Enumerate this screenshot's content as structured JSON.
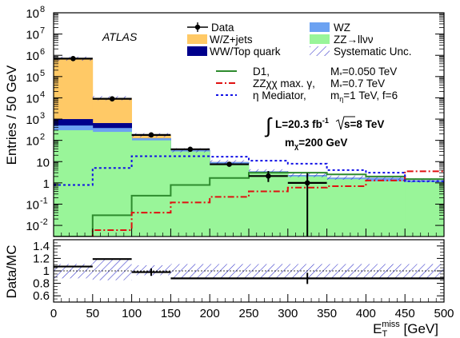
{
  "chart_data": [
    {
      "type": "bar",
      "subtype": "stacked-histogram-log",
      "experiment_label": "ATLAS",
      "ylabel": "Entries / 50 GeV",
      "yscale": "log",
      "ylim": [
        0.003,
        100000000
      ],
      "yticks": [
        {
          "v": 0.01,
          "b": "10",
          "e": "-2"
        },
        {
          "v": 0.1,
          "b": "10",
          "e": "-1"
        },
        {
          "v": 1,
          "b": "1",
          "e": ""
        },
        {
          "v": 10,
          "b": "10",
          "e": ""
        },
        {
          "v": 100,
          "b": "10",
          "e": "2"
        },
        {
          "v": 1000,
          "b": "10",
          "e": "3"
        },
        {
          "v": 10000,
          "b": "10",
          "e": "4"
        },
        {
          "v": 100000,
          "b": "10",
          "e": "5"
        },
        {
          "v": 1000000,
          "b": "10",
          "e": "6"
        },
        {
          "v": 10000000,
          "b": "10",
          "e": "7"
        },
        {
          "v": 100000000,
          "b": "10",
          "e": "8"
        }
      ],
      "xlim": [
        0,
        500
      ],
      "bin_edges": [
        0,
        50,
        100,
        150,
        200,
        250,
        300,
        350,
        400,
        450,
        500
      ],
      "stacked_series": [
        {
          "name": "ZZ→llνν",
          "color": "#99f599",
          "values": [
            300,
            250,
            100,
            30,
            8,
            3,
            2,
            1.5,
            1.2,
            1.1
          ]
        },
        {
          "name": "WZ",
          "color": "#6ca2f2",
          "values": [
            200,
            130,
            25,
            4,
            1.5,
            0.5,
            0.3,
            0.25,
            0.5,
            0.2
          ]
        },
        {
          "name": "WW/Top quark",
          "color": "#00008c",
          "values": [
            500,
            270,
            0,
            0,
            0,
            0,
            0,
            0,
            0,
            0
          ]
        },
        {
          "name": "W/Z+jets",
          "color": "#ffc966",
          "values": [
            700000,
            9000,
            50,
            0,
            0,
            0,
            0,
            0,
            0,
            0
          ]
        }
      ],
      "data_points": [
        {
          "x": 25,
          "y": 700000
        },
        {
          "x": 75,
          "y": 9000
        },
        {
          "x": 125,
          "y": 180
        },
        {
          "x": 175,
          "y": 38
        },
        {
          "x": 225,
          "y": 7.5
        },
        {
          "x": 275,
          "y": 2.1,
          "err_lo": 1.0,
          "err_hi": 1.5
        },
        {
          "x": 325,
          "y": 1.0,
          "err_lo": 0.997,
          "err_hi": 1.9
        }
      ],
      "data_bins_shown": [
        {
          "lo": 0,
          "hi": 50
        },
        {
          "lo": 50,
          "hi": 100
        },
        {
          "lo": 100,
          "hi": 150
        },
        {
          "lo": 150,
          "hi": 200
        },
        {
          "lo": 200,
          "hi": 250
        },
        {
          "lo": 250,
          "hi": 300
        },
        {
          "lo": 300,
          "hi": 350
        }
      ],
      "signal_series": [
        {
          "name": "D1",
          "color": "#2e8b2e",
          "dash": "",
          "values": [
            0.003,
            0.03,
            0.25,
            0.8,
            1.7,
            3.0,
            3.0,
            2.5,
            2.0,
            1.5
          ]
        },
        {
          "name": "ZZχχ max. γ",
          "color": "#e01010",
          "dash": "8,3,2,3",
          "values": [
            0.0005,
            0.006,
            0.04,
            0.12,
            0.22,
            0.4,
            0.6,
            0.7,
            1.3,
            3.5
          ]
        },
        {
          "name": "η Mediator",
          "color": "#1010e6",
          "dash": "3,3",
          "values": [
            0.8,
            5,
            18,
            18,
            17,
            11,
            8,
            4,
            3,
            1.2
          ]
        }
      ],
      "legend": [
        {
          "label": "Data",
          "symbol": "marker"
        },
        {
          "label": "WZ",
          "symbol": "box",
          "color": "#6ca2f2"
        },
        {
          "label": "W/Z+jets",
          "symbol": "box",
          "color": "#ffc966"
        },
        {
          "label": "ZZ→llνν",
          "symbol": "box",
          "color": "#99f599"
        },
        {
          "label": "WW/Top quark",
          "symbol": "box",
          "color": "#00008c"
        },
        {
          "label": "Systematic Unc.",
          "symbol": "hatch",
          "color": "#3030c8"
        },
        {
          "label": "D1,",
          "symbol": "line",
          "color": "#2e8b2e",
          "param": "M",
          "param_sub": "*",
          "param_value": "=0.050 TeV"
        },
        {
          "label": "ZZχχ max. γ,",
          "symbol": "line",
          "color": "#e01010",
          "dash": "8,3,2,3",
          "param": "M",
          "param_sub": "*",
          "param_value": "=0.7 TeV"
        },
        {
          "label": "η Mediator,",
          "symbol": "line",
          "color": "#1010e6",
          "dash": "3,3",
          "param": "m",
          "param_sub": "η",
          "param_value": "=1 TeV, f=6"
        }
      ],
      "lumi_text": {
        "a": "L=20.3 fb",
        "a_sup": "-1",
        "b": "s=8 TeV"
      },
      "mass_text": {
        "a": "m",
        "a_sub": "χ",
        "b": "=200 GeV"
      }
    },
    {
      "type": "scatter",
      "subtype": "ratio-panel",
      "ylabel": "Data/MC",
      "ylim": [
        0.5,
        1.5
      ],
      "yticks": [
        "0.6",
        "0.8",
        "1",
        "1.2",
        "1.4"
      ],
      "xlim": [
        0,
        500
      ],
      "xticks": [
        "0",
        "50",
        "100",
        "150",
        "200",
        "250",
        "300",
        "350",
        "400",
        "450",
        "500"
      ],
      "xlabel": {
        "a": "E",
        "a_sub": "T",
        "a_sup": "miss",
        "b": " [GeV]"
      },
      "reference_line": 1.0,
      "syst_band": [
        {
          "lo": 0,
          "hi": 50,
          "min": 0.88,
          "max": 1.11
        },
        {
          "lo": 50,
          "hi": 100,
          "min": 0.85,
          "max": 1.2
        },
        {
          "lo": 100,
          "hi": 150,
          "min": 0.93,
          "max": 1.09
        },
        {
          "lo": 150,
          "hi": 500,
          "min": 0.89,
          "max": 1.11
        }
      ],
      "points": [
        {
          "lo": 0,
          "hi": 50,
          "y": 1.07
        },
        {
          "lo": 50,
          "hi": 100,
          "y": 1.19
        },
        {
          "lo": 100,
          "hi": 150,
          "y": 0.98,
          "err": 0.06
        },
        {
          "lo": 150,
          "hi": 500,
          "y": 0.88,
          "err": 0.09
        }
      ]
    }
  ]
}
